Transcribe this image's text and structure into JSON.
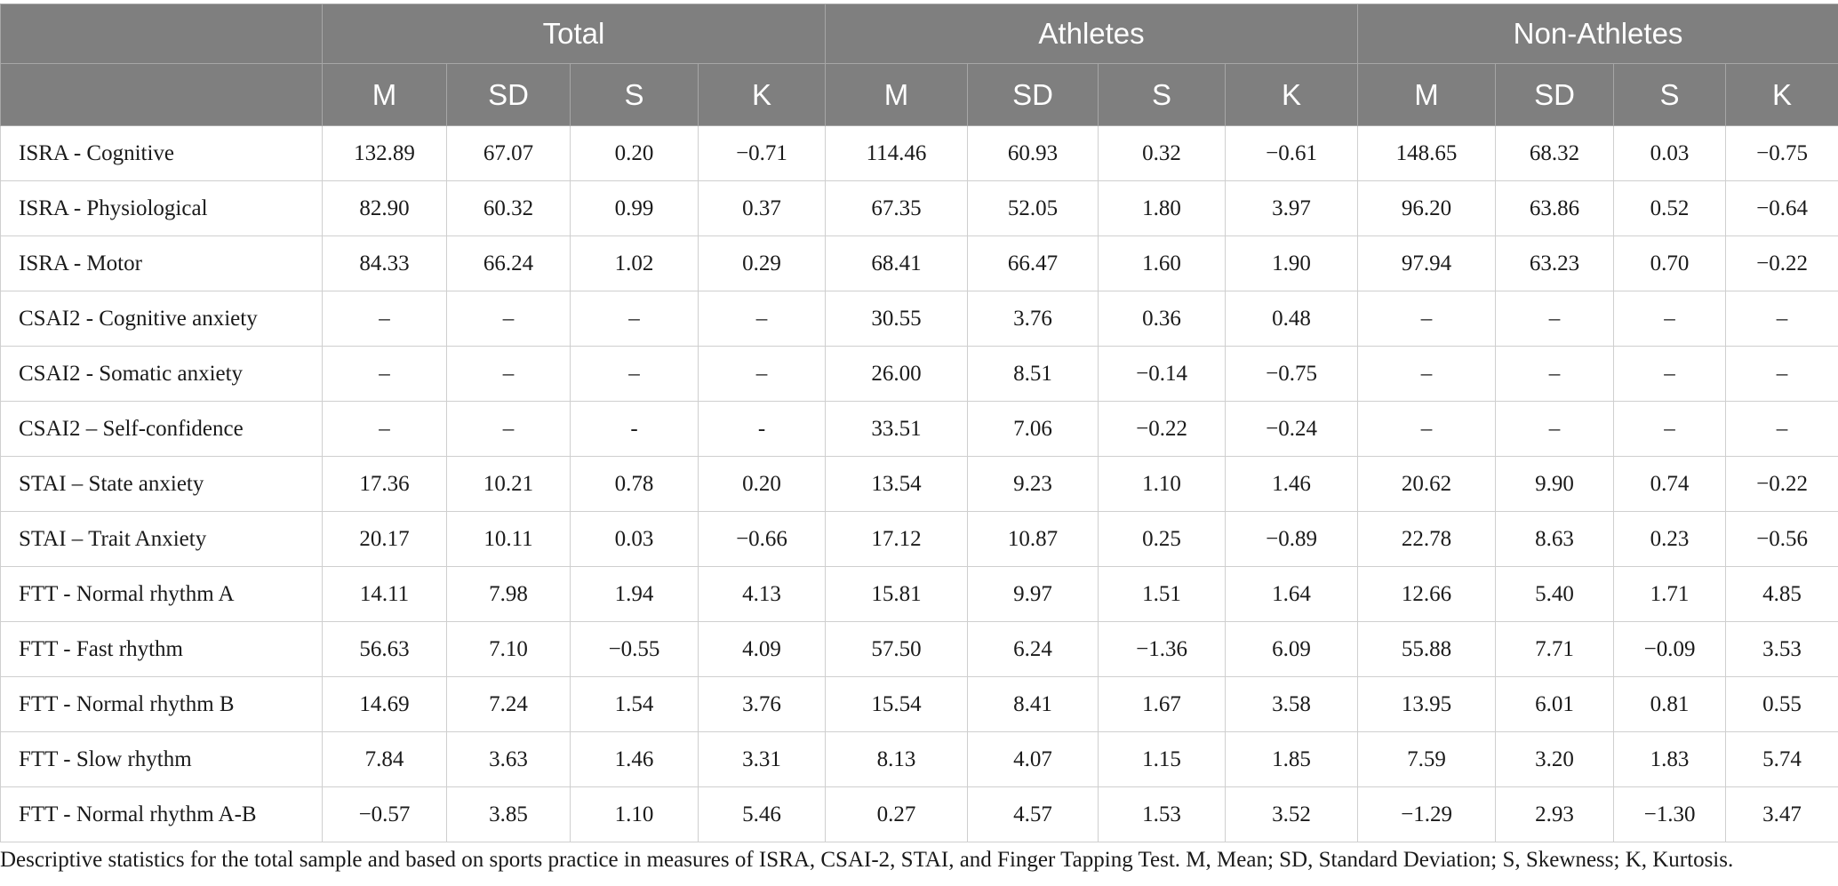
{
  "table": {
    "groups": [
      "Total",
      "Athletes",
      "Non-Athletes"
    ],
    "subheaders": [
      "M",
      "SD",
      "S",
      "K",
      "M",
      "SD",
      "S",
      "K",
      "M",
      "SD",
      "S",
      "K"
    ],
    "rows": [
      {
        "label": "ISRA - Cognitive",
        "values": [
          "132.89",
          "67.07",
          "0.20",
          "−0.71",
          "114.46",
          "60.93",
          "0.32",
          "−0.61",
          "148.65",
          "68.32",
          "0.03",
          "−0.75"
        ]
      },
      {
        "label": "ISRA - Physiological",
        "values": [
          "82.90",
          "60.32",
          "0.99",
          "0.37",
          "67.35",
          "52.05",
          "1.80",
          "3.97",
          "96.20",
          "63.86",
          "0.52",
          "−0.64"
        ]
      },
      {
        "label": "ISRA - Motor",
        "values": [
          "84.33",
          "66.24",
          "1.02",
          "0.29",
          "68.41",
          "66.47",
          "1.60",
          "1.90",
          "97.94",
          "63.23",
          "0.70",
          "−0.22"
        ]
      },
      {
        "label": "CSAI2 - Cognitive anxiety",
        "values": [
          "–",
          "–",
          "–",
          "–",
          "30.55",
          "3.76",
          "0.36",
          "0.48",
          "–",
          "–",
          "–",
          "–"
        ]
      },
      {
        "label": "CSAI2 - Somatic anxiety",
        "values": [
          "–",
          "–",
          "–",
          "–",
          "26.00",
          "8.51",
          "−0.14",
          "−0.75",
          "–",
          "–",
          "–",
          "–"
        ]
      },
      {
        "label": "CSAI2 – Self-confidence",
        "values": [
          "–",
          "–",
          "-",
          "-",
          "33.51",
          "7.06",
          "−0.22",
          "−0.24",
          "–",
          "–",
          "–",
          "–"
        ]
      },
      {
        "label": "STAI – State anxiety",
        "values": [
          "17.36",
          "10.21",
          "0.78",
          "0.20",
          "13.54",
          "9.23",
          "1.10",
          "1.46",
          "20.62",
          "9.90",
          "0.74",
          "−0.22"
        ]
      },
      {
        "label": "STAI – Trait Anxiety",
        "values": [
          "20.17",
          "10.11",
          "0.03",
          "−0.66",
          "17.12",
          "10.87",
          "0.25",
          "−0.89",
          "22.78",
          "8.63",
          "0.23",
          "−0.56"
        ]
      },
      {
        "label": "FTT - Normal rhythm A",
        "values": [
          "14.11",
          "7.98",
          "1.94",
          "4.13",
          "15.81",
          "9.97",
          "1.51",
          "1.64",
          "12.66",
          "5.40",
          "1.71",
          "4.85"
        ]
      },
      {
        "label": "FTT - Fast rhythm",
        "values": [
          "56.63",
          "7.10",
          "−0.55",
          "4.09",
          "57.50",
          "6.24",
          "−1.36",
          "6.09",
          "55.88",
          "7.71",
          "−0.09",
          "3.53"
        ]
      },
      {
        "label": "FTT - Normal rhythm B",
        "values": [
          "14.69",
          "7.24",
          "1.54",
          "3.76",
          "15.54",
          "8.41",
          "1.67",
          "3.58",
          "13.95",
          "6.01",
          "0.81",
          "0.55"
        ]
      },
      {
        "label": "FTT - Slow rhythm",
        "values": [
          "7.84",
          "3.63",
          "1.46",
          "3.31",
          "8.13",
          "4.07",
          "1.15",
          "1.85",
          "7.59",
          "3.20",
          "1.83",
          "5.74"
        ]
      },
      {
        "label": "FTT - Normal rhythm A-B",
        "values": [
          "−0.57",
          "3.85",
          "1.10",
          "5.46",
          "0.27",
          "4.57",
          "1.53",
          "3.52",
          "−1.29",
          "2.93",
          "−1.30",
          "3.47"
        ]
      }
    ]
  },
  "caption": "Descriptive statistics for the total sample and based on sports practice in measures of ISRA, CSAI-2, STAI, and Finger Tapping Test. M, Mean; SD, Standard Deviation; S, Skewness; K, Kurtosis.",
  "colors": {
    "header_background": "#7f7f7f",
    "header_text": "#ffffff",
    "grid_line": "#cfcfcf"
  }
}
